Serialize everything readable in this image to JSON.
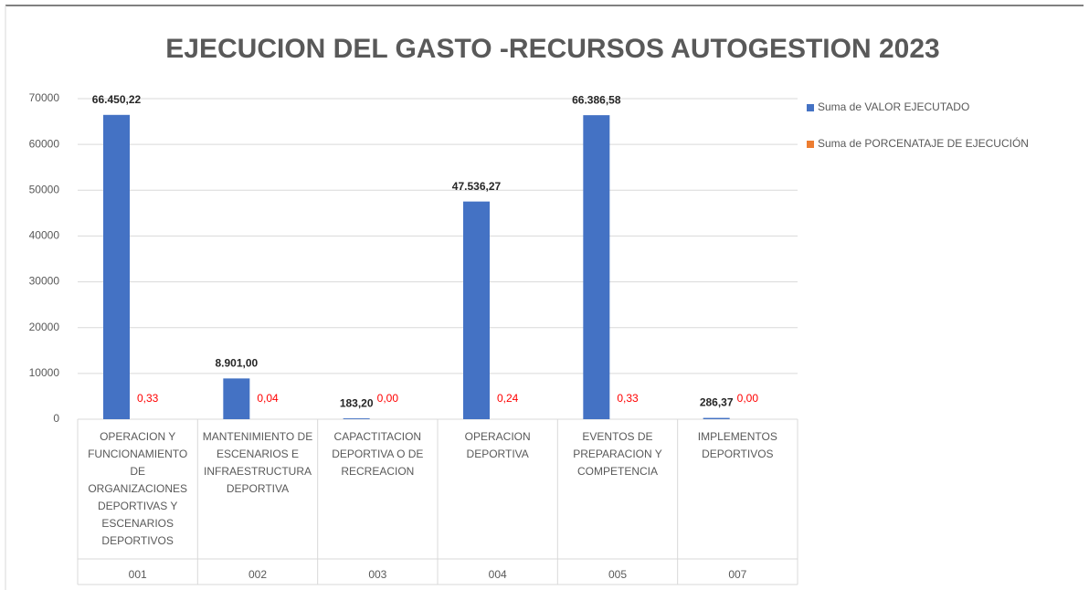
{
  "chart_data": {
    "type": "bar",
    "title": "EJECUCION DEL GASTO -RECURSOS AUTOGESTION 2023",
    "categories": [
      "OPERACION Y FUNCIONAMIENTO DE ORGANIZACIONES DEPORTIVAS Y ESCENARIOS DEPORTIVOS",
      "MANTENIMIENTO DE ESCENARIOS E INFRAESTRUCTURA DEPORTIVA",
      "CAPACTITACION DEPORTIVA O DE RECREACION",
      "OPERACION DEPORTIVA",
      "EVENTOS DE PREPARACION Y COMPETENCIA",
      "IMPLEMENTOS DEPORTIVOS"
    ],
    "codes": [
      "001",
      "002",
      "003",
      "004",
      "005",
      "007"
    ],
    "series": [
      {
        "name": "Suma de VALOR EJECUTADO",
        "color": "#4472c4",
        "values": [
          66450.22,
          8901.0,
          183.2,
          47536.27,
          66386.58,
          286.37
        ],
        "value_labels": [
          "66.450,22",
          "8.901,00",
          "183,20",
          "47.536,27",
          "66.386,58",
          "286,37"
        ]
      },
      {
        "name": "Suma de PORCENATAJE DE EJECUCIÓN",
        "color": "#ed7d31",
        "values": [
          0.33,
          0.04,
          0.0,
          0.24,
          0.33,
          0.0
        ],
        "value_labels": [
          "0,33",
          "0,04",
          "0,00",
          "0,24",
          "0,33",
          "0,00"
        ]
      }
    ],
    "ylim": [
      0,
      70000
    ],
    "yticks": [
      0,
      10000,
      20000,
      30000,
      40000,
      50000,
      60000,
      70000
    ],
    "grid": true,
    "legend": "right"
  }
}
